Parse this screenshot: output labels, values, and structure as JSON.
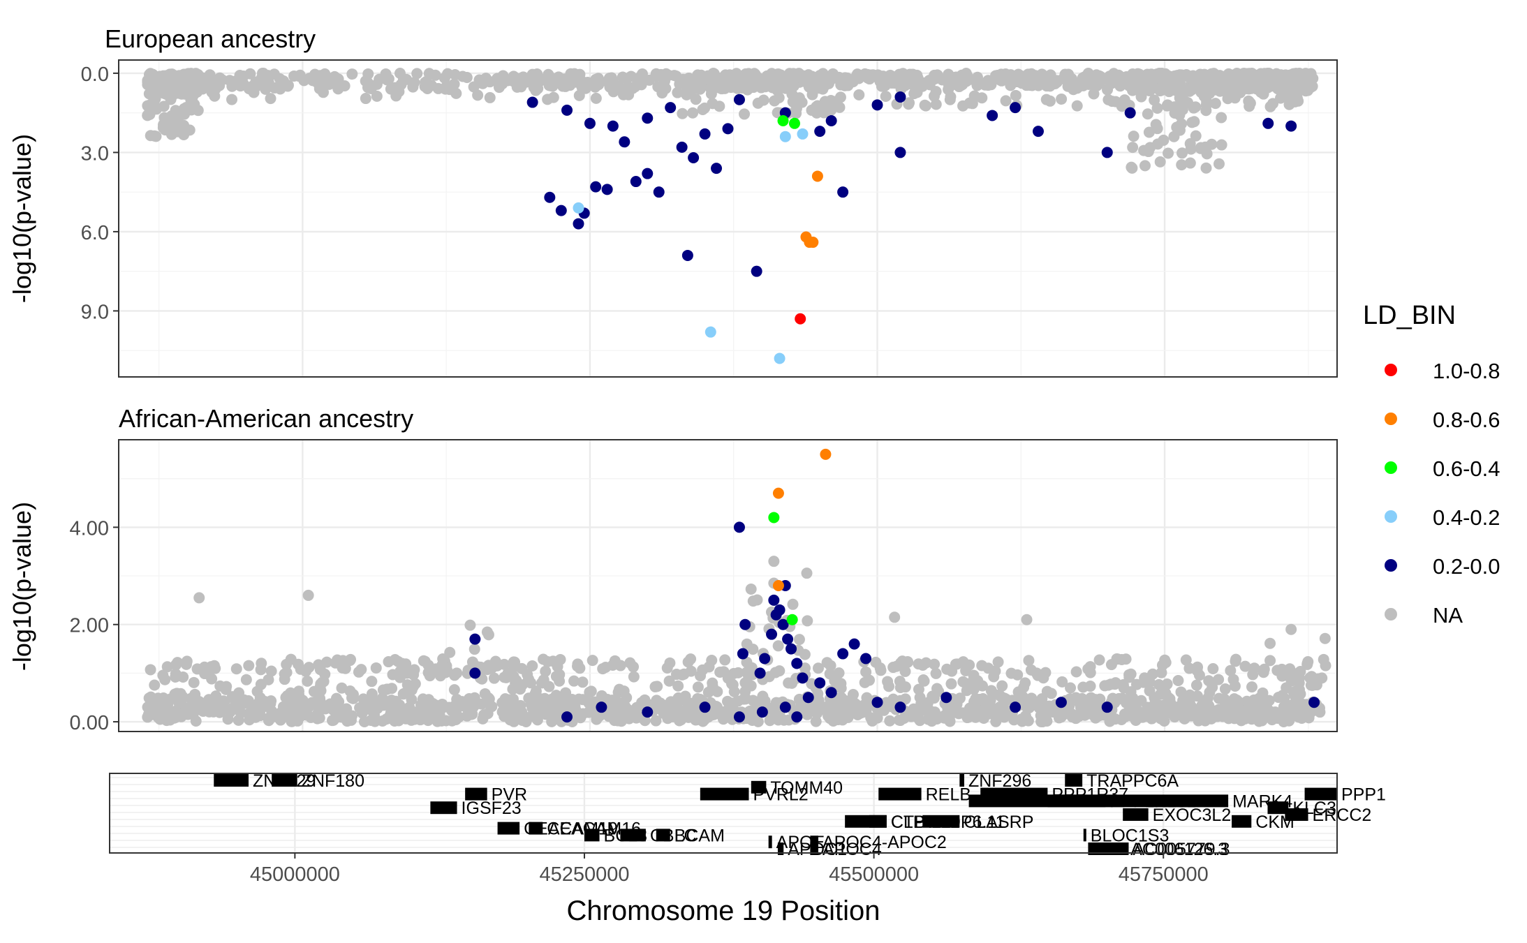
{
  "chart_data": [
    {
      "type": "scatter",
      "title": "European ancestry",
      "ylabel": "-log10(p-value)",
      "xlim": [
        44840000,
        45900000
      ],
      "ylim": [
        11.5,
        -0.5
      ],
      "y_reversed": true,
      "yticks": [
        0,
        3,
        6,
        9
      ],
      "ytick_labels": [
        "0.0",
        "3.0",
        "6.0",
        "9.0"
      ],
      "grid": true,
      "background_series": {
        "name": "NA",
        "color": "#BEBEBE",
        "count": 1400,
        "note_segments": [
          [
            44865000,
            44910000,
            0.8,
            2.4
          ],
          [
            44910000,
            45330000,
            0.6,
            1.0
          ],
          [
            45330000,
            45460000,
            0.6,
            1.6
          ],
          [
            45460000,
            45720000,
            0.5,
            1.3
          ],
          [
            45720000,
            45800000,
            0.7,
            3.6
          ],
          [
            45800000,
            45880000,
            0.6,
            1.3
          ]
        ]
      },
      "series": [
        {
          "name": "0.2-0.0",
          "color": "#000080",
          "points": [
            [
              45200000,
              1.1
            ],
            [
              45230000,
              1.4
            ],
            [
              45250000,
              1.9
            ],
            [
              45270000,
              2.0
            ],
            [
              45280000,
              2.6
            ],
            [
              45300000,
              1.7
            ],
            [
              45320000,
              1.3
            ],
            [
              45330000,
              2.8
            ],
            [
              45340000,
              3.2
            ],
            [
              45350000,
              2.3
            ],
            [
              45360000,
              3.6
            ],
            [
              45370000,
              2.1
            ],
            [
              45380000,
              1.0
            ],
            [
              45420000,
              1.5
            ],
            [
              45450000,
              2.2
            ],
            [
              45460000,
              1.8
            ],
            [
              45500000,
              1.2
            ],
            [
              45520000,
              0.9
            ],
            [
              45600000,
              1.6
            ],
            [
              45620000,
              1.3
            ],
            [
              45640000,
              2.2
            ],
            [
              45700000,
              3.0
            ],
            [
              45720000,
              1.5
            ],
            [
              45840000,
              1.9
            ],
            [
              45860000,
              2.0
            ],
            [
              45300000,
              3.8
            ],
            [
              45310000,
              4.5
            ],
            [
              45290000,
              4.1
            ],
            [
              45215000,
              4.7
            ],
            [
              45225000,
              5.2
            ],
            [
              45240000,
              5.7
            ],
            [
              45255000,
              4.3
            ],
            [
              45265000,
              4.4
            ],
            [
              45245000,
              5.3
            ],
            [
              45335000,
              6.9
            ],
            [
              45395000,
              7.5
            ],
            [
              45470000,
              4.5
            ],
            [
              45520000,
              3.0
            ]
          ]
        },
        {
          "name": "0.4-0.2",
          "color": "#87CEFA",
          "points": [
            [
              45240000,
              5.1
            ],
            [
              45355000,
              9.8
            ],
            [
              45415000,
              10.8
            ],
            [
              45420000,
              2.4
            ],
            [
              45435000,
              2.3
            ]
          ]
        },
        {
          "name": "0.6-0.4",
          "color": "#00FF00",
          "points": [
            [
              45418000,
              1.8
            ],
            [
              45428000,
              1.9
            ]
          ]
        },
        {
          "name": "0.8-0.6",
          "color": "#FF7F00",
          "points": [
            [
              45448000,
              3.9
            ],
            [
              45438000,
              6.2
            ],
            [
              45441000,
              6.4
            ],
            [
              45444000,
              6.4
            ]
          ]
        },
        {
          "name": "1.0-0.8",
          "color": "#FF0000",
          "points": [
            [
              45433000,
              9.3
            ]
          ]
        }
      ]
    },
    {
      "type": "scatter",
      "title": "African-American ancestry",
      "ylabel": "-log10(p-value)",
      "xlim": [
        44840000,
        45900000
      ],
      "ylim": [
        -0.2,
        5.8
      ],
      "yticks": [
        0,
        2,
        4
      ],
      "ytick_labels": [
        "0.00",
        "2.00",
        "4.00"
      ],
      "grid": true,
      "background_series": {
        "name": "NA",
        "color": "#BEBEBE",
        "count": 1500
      },
      "series": [
        {
          "name": "0.2-0.0",
          "color": "#000080",
          "points": [
            [
              45380000,
              4.0
            ],
            [
              45385000,
              2.0
            ],
            [
              45383000,
              1.4
            ],
            [
              45410000,
              2.5
            ],
            [
              45415000,
              2.3
            ],
            [
              45420000,
              2.8
            ],
            [
              45412000,
              2.2
            ],
            [
              45418000,
              2.0
            ],
            [
              45408000,
              1.8
            ],
            [
              45422000,
              1.7
            ],
            [
              45425000,
              1.5
            ],
            [
              45402000,
              1.3
            ],
            [
              45430000,
              1.2
            ],
            [
              45398000,
              1.0
            ],
            [
              45435000,
              0.9
            ],
            [
              45480000,
              1.6
            ],
            [
              45470000,
              1.4
            ],
            [
              45490000,
              1.3
            ],
            [
              45450000,
              0.8
            ],
            [
              45440000,
              0.5
            ],
            [
              45420000,
              0.3
            ],
            [
              45400000,
              0.2
            ],
            [
              45350000,
              0.3
            ],
            [
              45300000,
              0.2
            ],
            [
              45260000,
              0.3
            ],
            [
              45230000,
              0.1
            ],
            [
              45380000,
              0.1
            ],
            [
              45430000,
              0.1
            ],
            [
              45460000,
              0.6
            ],
            [
              45500000,
              0.4
            ],
            [
              45520000,
              0.3
            ],
            [
              45560000,
              0.5
            ],
            [
              45620000,
              0.3
            ],
            [
              45660000,
              0.4
            ],
            [
              45150000,
              1.7
            ],
            [
              45150000,
              1.0
            ],
            [
              45700000,
              0.3
            ],
            [
              45880000,
              0.4
            ]
          ]
        },
        {
          "name": "0.6-0.4",
          "color": "#00FF00",
          "points": [
            [
              45410000,
              4.2
            ],
            [
              45426000,
              2.1
            ]
          ]
        },
        {
          "name": "0.8-0.6",
          "color": "#FF7F00",
          "points": [
            [
              45455000,
              5.5
            ],
            [
              45414000,
              4.7
            ],
            [
              45414000,
              2.8
            ]
          ]
        }
      ]
    },
    {
      "type": "gene_track",
      "xlabel": "Chromosome 19 Position",
      "xticks": [
        45000000,
        45250000,
        45500000,
        45750000
      ],
      "xtick_labels": [
        "45000000",
        "45250000",
        "45500000",
        "45750000"
      ],
      "genes": [
        {
          "name": "ZNF229",
          "start": 44930000,
          "end": 44960000,
          "row": 0
        },
        {
          "name": "ZNF180",
          "start": 44980000,
          "end": 45002000,
          "row": 0
        },
        {
          "name": "ZNF296",
          "start": 45574000,
          "end": 45578000,
          "row": 0
        },
        {
          "name": "TRAPPC6A",
          "start": 45665000,
          "end": 45680000,
          "row": 0
        },
        {
          "name": "TOMM40",
          "start": 45394000,
          "end": 45407000,
          "row": 1
        },
        {
          "name": "PVRL2",
          "start": 45350000,
          "end": 45392000,
          "row": 2
        },
        {
          "name": "RELB",
          "start": 45504000,
          "end": 45541000,
          "row": 2
        },
        {
          "name": "PVR",
          "start": 45147000,
          "end": 45166000,
          "row": 2
        },
        {
          "name": "PPP1R37",
          "start": 45592000,
          "end": 45650000,
          "row": 2
        },
        {
          "name": "PPP1R13L",
          "start": 45650000,
          "end": 45700000,
          "row": 3
        },
        {
          "name": "MARK4",
          "start": 45582000,
          "end": 45806000,
          "row": 3
        },
        {
          "name": "PPP1",
          "start": 45872000,
          "end": 45900000,
          "row": 2
        },
        {
          "name": "IGSF23",
          "start": 45117000,
          "end": 45140000,
          "row": 4
        },
        {
          "name": "KLC3",
          "start": 45840000,
          "end": 45858000,
          "row": 4
        },
        {
          "name": "EXOC3L2",
          "start": 45715000,
          "end": 45737000,
          "row": 5
        },
        {
          "name": "ERCC2",
          "start": 45855000,
          "end": 45875000,
          "row": 5
        },
        {
          "name": "CTB-129P6.11",
          "start": 45475000,
          "end": 45511000,
          "row": 6
        },
        {
          "name": "CLPTM1",
          "start": 45496000,
          "end": 45511000,
          "row": 6
        },
        {
          "name": "CLASRP",
          "start": 45542000,
          "end": 45574000,
          "row": 6
        },
        {
          "name": "CKM",
          "start": 45809000,
          "end": 45826000,
          "row": 6
        },
        {
          "name": "CEACAM19",
          "start": 45175000,
          "end": 45194000,
          "row": 7
        },
        {
          "name": "CEACAM16",
          "start": 45202000,
          "end": 45214000,
          "row": 7
        },
        {
          "name": "BCL3",
          "start": 45250000,
          "end": 45263000,
          "row": 8
        },
        {
          "name": "CBLC",
          "start": 45281000,
          "end": 45303000,
          "row": 8
        },
        {
          "name": "BCAM",
          "start": 45312000,
          "end": 45324000,
          "row": 8
        },
        {
          "name": "BLOC1S3",
          "start": 45681000,
          "end": 45683000,
          "row": 8
        },
        {
          "name": "APOE",
          "start": 45409000,
          "end": 45412000,
          "row": 9
        },
        {
          "name": "APOC4-APOC2",
          "start": 45445000,
          "end": 45452000,
          "row": 9
        },
        {
          "name": "APOC1",
          "start": 45417000,
          "end": 45422000,
          "row": 10
        },
        {
          "name": "APOC4",
          "start": 45445000,
          "end": 45452000,
          "row": 10
        },
        {
          "name": "AC005779.3",
          "start": 45685000,
          "end": 45720000,
          "row": 10
        },
        {
          "name": "AC006126.3",
          "start": 45695000,
          "end": 45718000,
          "row": 10
        }
      ]
    }
  ],
  "legend": {
    "title": "LD_BIN",
    "placement": "right",
    "items": [
      {
        "label": "1.0-0.8",
        "color": "#FF0000"
      },
      {
        "label": "0.8-0.6",
        "color": "#FF7F00"
      },
      {
        "label": "0.6-0.4",
        "color": "#00FF00"
      },
      {
        "label": "0.4-0.2",
        "color": "#87CEFA"
      },
      {
        "label": "0.2-0.0",
        "color": "#000080"
      },
      {
        "label": "NA",
        "color": "#BEBEBE"
      }
    ]
  }
}
